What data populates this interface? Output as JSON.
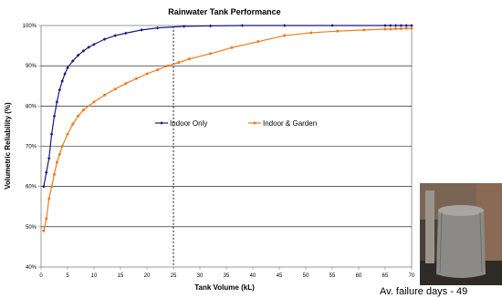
{
  "chart_data": {
    "type": "line",
    "title": "Rainwater Tank Performance",
    "xlabel": "Tank Volume (kL)",
    "ylabel": "Volumetric Reliability (%)",
    "xlim": [
      0,
      70
    ],
    "ylim": [
      40,
      100
    ],
    "x_ticks": [
      "0",
      "5",
      "10",
      "15",
      "20",
      "25",
      "30",
      "35",
      "40",
      "45",
      "50",
      "55",
      "60",
      "65",
      "70"
    ],
    "y_ticks": [
      "40%",
      "50%",
      "60%",
      "70%",
      "80%",
      "90%",
      "100%"
    ],
    "grid": "horizontal",
    "legend_position": "center",
    "reference_line_x": 25,
    "series": [
      {
        "name": "Indoor Only",
        "color": "#1a1a80",
        "marker": "diamond",
        "x": [
          0.5,
          1,
          1.5,
          2,
          2.5,
          3,
          3.5,
          4,
          4.5,
          5,
          6,
          7,
          8,
          9,
          10,
          12,
          14,
          16,
          19,
          22,
          27,
          32,
          38,
          46,
          55,
          65,
          66,
          67,
          68,
          69,
          70
        ],
        "y": [
          60,
          63.5,
          67,
          73,
          77.5,
          81,
          84,
          86.2,
          88,
          89.5,
          91.2,
          92.6,
          93.7,
          94.6,
          95.3,
          96.6,
          97.5,
          98.1,
          98.9,
          99.4,
          99.8,
          99.9,
          100,
          100,
          100,
          100,
          100,
          100,
          100,
          100,
          100
        ]
      },
      {
        "name": "Indoor & Garden",
        "color": "#f07a1e",
        "marker": "circle",
        "x": [
          0.5,
          1,
          1.5,
          2,
          2.5,
          3,
          3.5,
          4,
          5,
          6,
          7,
          8,
          10,
          12,
          14,
          16,
          18,
          20,
          22,
          24,
          26,
          28,
          32,
          36,
          41,
          46,
          51,
          56,
          61,
          65,
          66,
          67,
          68,
          69,
          70
        ],
        "y": [
          49,
          52,
          57,
          60,
          63,
          66,
          68,
          70,
          73,
          75.5,
          77.5,
          79,
          81,
          82.7,
          84.2,
          85.6,
          86.8,
          88,
          89,
          90,
          90.8,
          91.7,
          93,
          94.5,
          96,
          97.5,
          98.2,
          98.6,
          98.9,
          99.1,
          99.1,
          99.2,
          99.2,
          99.3,
          99.3
        ]
      }
    ]
  },
  "caption": "Av. failure days - 49",
  "photo_icon": "rainwater-tank-photo"
}
